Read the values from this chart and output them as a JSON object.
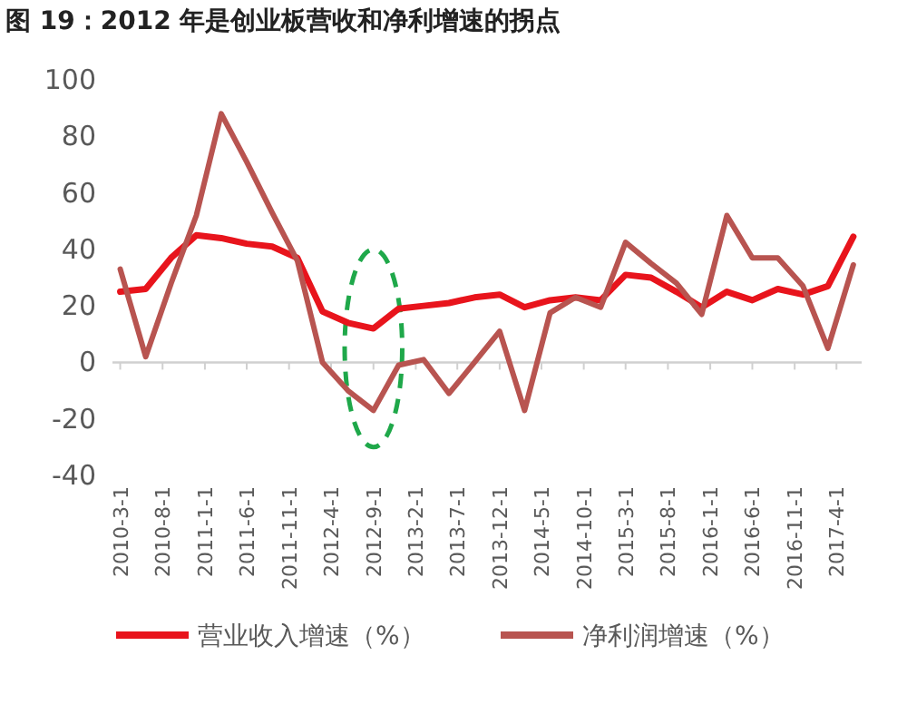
{
  "chart_data": {
    "type": "line",
    "title": "图 19：2012 年是创业板营收和净利增速的拐点",
    "x": [
      "2010-03-01",
      "2010-06-01",
      "2010-09-01",
      "2010-12-01",
      "2011-03-01",
      "2011-06-01",
      "2011-09-01",
      "2011-12-01",
      "2012-03-01",
      "2012-06-01",
      "2012-09-01",
      "2012-12-01",
      "2013-03-01",
      "2013-06-01",
      "2013-09-01",
      "2013-12-01",
      "2014-03-01",
      "2014-06-01",
      "2014-09-01",
      "2014-12-01",
      "2015-03-01",
      "2015-06-01",
      "2015-09-01",
      "2015-12-01",
      "2016-03-01",
      "2016-06-01",
      "2016-09-01",
      "2016-12-01",
      "2017-03-01",
      "2017-06-01"
    ],
    "series": [
      {
        "name": "营业收入增速（%）",
        "color": "#e8141c",
        "values": [
          25,
          26,
          37,
          45,
          44,
          42,
          41,
          37,
          18,
          14,
          12,
          19,
          20,
          21,
          23,
          24,
          19.5,
          22,
          23,
          22,
          31,
          30,
          25,
          19.5,
          25,
          22,
          26,
          24,
          27,
          44.5
        ]
      },
      {
        "name": "净利润增速（%）",
        "color": "#b85450",
        "values": [
          33,
          2,
          28,
          52,
          88,
          71,
          53,
          36,
          0,
          -10,
          -17,
          -1,
          1,
          -11,
          0,
          11,
          -17,
          17.5,
          23,
          19.5,
          42.5,
          35,
          28,
          17,
          52,
          37,
          37,
          27,
          5,
          34.5
        ]
      }
    ],
    "xlim": [
      "2010-02-01",
      "2017-07-01"
    ],
    "xticks": [
      {
        "value": "2010-03-01",
        "label": "2010-3-1"
      },
      {
        "value": "2010-08-01",
        "label": "2010-8-1"
      },
      {
        "value": "2011-01-01",
        "label": "2011-1-1"
      },
      {
        "value": "2011-06-01",
        "label": "2011-6-1"
      },
      {
        "value": "2011-11-01",
        "label": "2011-11-1"
      },
      {
        "value": "2012-04-01",
        "label": "2012-4-1"
      },
      {
        "value": "2012-09-01",
        "label": "2012-9-1"
      },
      {
        "value": "2013-02-01",
        "label": "2013-2-1"
      },
      {
        "value": "2013-07-01",
        "label": "2013-7-1"
      },
      {
        "value": "2013-12-01",
        "label": "2013-12-1"
      },
      {
        "value": "2014-05-01",
        "label": "2014-5-1"
      },
      {
        "value": "2014-10-01",
        "label": "2014-10-1"
      },
      {
        "value": "2015-03-01",
        "label": "2015-3-1"
      },
      {
        "value": "2015-08-01",
        "label": "2015-8-1"
      },
      {
        "value": "2016-01-01",
        "label": "2016-1-1"
      },
      {
        "value": "2016-06-01",
        "label": "2016-6-1"
      },
      {
        "value": "2016-11-01",
        "label": "2016-11-1"
      },
      {
        "value": "2017-04-01",
        "label": "2017-4-1"
      }
    ],
    "ylim": [
      -40,
      100
    ],
    "yticks": [
      -40,
      -20,
      0,
      20,
      40,
      60,
      80,
      100
    ],
    "legend": "bottom",
    "marker": "none",
    "line_style": "solid"
  }
}
